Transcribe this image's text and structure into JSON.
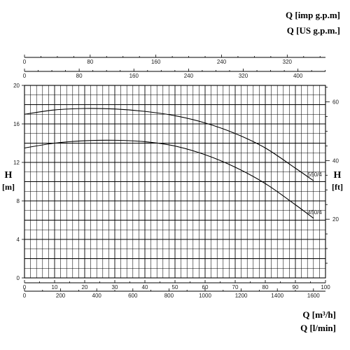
{
  "labels": {
    "q_imp": "Q [imp g.p.m]",
    "q_us": "Q [US g.p.m.]",
    "q_m3h": "Q [m³/h]",
    "q_lmin": "Q [l/min]",
    "h_left": "H",
    "h_left_unit": "[m]",
    "h_right": "H",
    "h_right_unit": "[ft]"
  },
  "chart_data": {
    "type": "line",
    "x_unit": "m³/h",
    "y_unit": "m",
    "xlim": [
      0,
      100
    ],
    "ylim": [
      0,
      20
    ],
    "grid": true,
    "series": [
      {
        "name": "550/4",
        "x": [
          0,
          10,
          20,
          30,
          40,
          50,
          60,
          70,
          80,
          90,
          96
        ],
        "values": [
          17.0,
          17.45,
          17.6,
          17.55,
          17.3,
          16.85,
          16.1,
          15.0,
          13.5,
          11.4,
          10.1
        ]
      },
      {
        "name": "450/4",
        "x": [
          0,
          10,
          20,
          30,
          40,
          50,
          60,
          70,
          80,
          90,
          96
        ],
        "values": [
          13.5,
          14.0,
          14.25,
          14.3,
          14.15,
          13.7,
          12.8,
          11.5,
          9.8,
          7.6,
          6.2
        ]
      }
    ],
    "axes": {
      "bottom_m3h": {
        "min": 0,
        "max": 100,
        "ticks": [
          0,
          10,
          20,
          30,
          40,
          50,
          60,
          70,
          80,
          90,
          100
        ]
      },
      "bottom_lmin": {
        "ticks": [
          0,
          200,
          400,
          600,
          800,
          1000,
          1200,
          1400,
          1600
        ]
      },
      "top_us_gpm": {
        "ticks": [
          0,
          80,
          160,
          240,
          320,
          400
        ]
      },
      "top_imp_gpm": {
        "ticks": [
          0,
          80,
          160,
          240,
          320
        ]
      },
      "left_m": {
        "min": 0,
        "max": 20,
        "ticks": [
          0,
          4,
          8,
          12,
          16,
          20
        ]
      },
      "right_ft": {
        "ticks": [
          20,
          40,
          60
        ]
      }
    }
  }
}
